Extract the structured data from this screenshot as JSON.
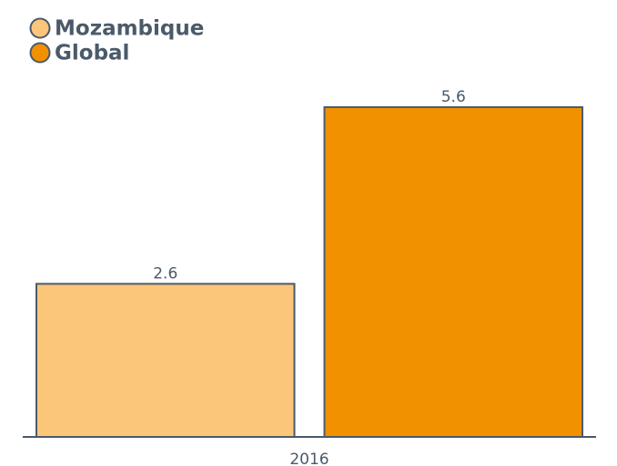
{
  "chart_data": {
    "type": "bar",
    "categories": [
      "2016"
    ],
    "series": [
      {
        "name": "Mozambique",
        "color": "#fbc67a",
        "values": [
          2.6
        ]
      },
      {
        "name": "Global",
        "color": "#f29100",
        "values": [
          5.6
        ]
      }
    ],
    "legend": "top-left"
  }
}
